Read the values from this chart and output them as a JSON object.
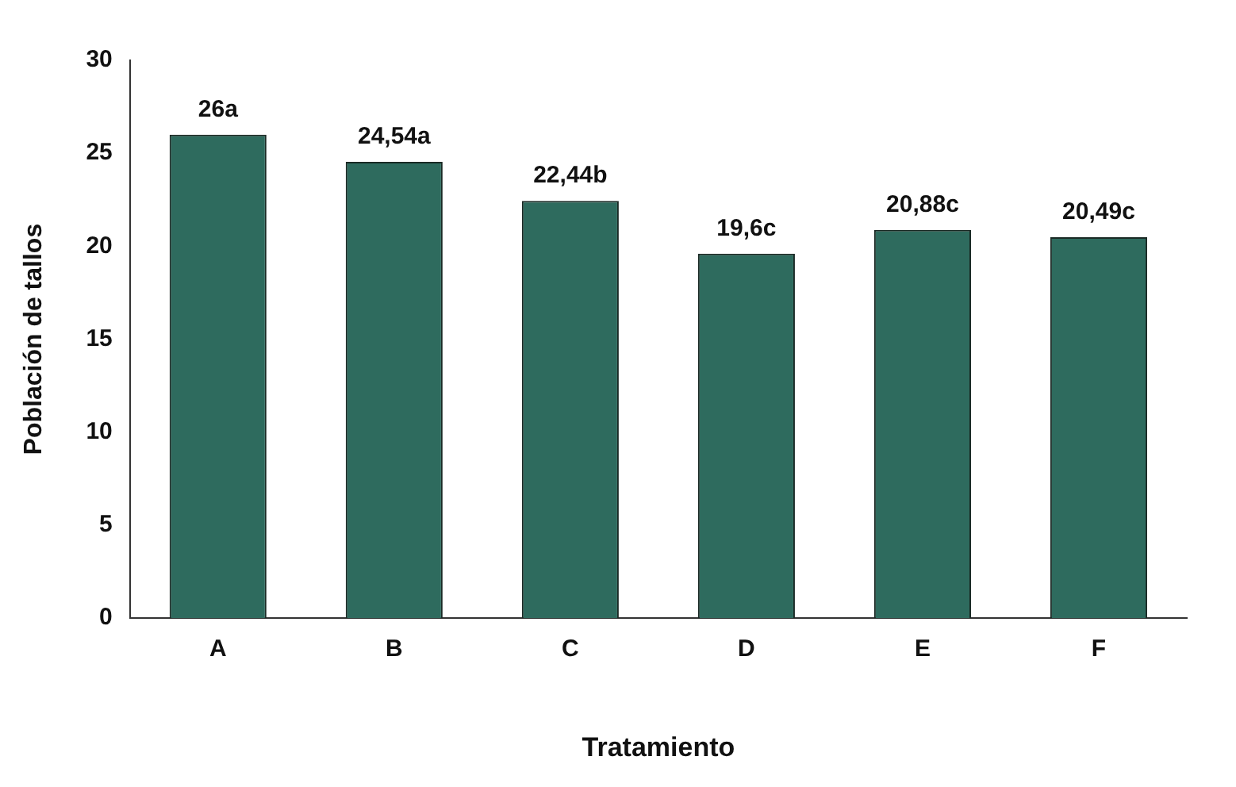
{
  "chart_data": {
    "type": "bar",
    "xlabel": "Tratamiento",
    "ylabel": "Población de tallos",
    "categories": [
      "A",
      "B",
      "C",
      "D",
      "E",
      "F"
    ],
    "values": [
      26,
      24.54,
      22.44,
      19.6,
      20.88,
      20.49
    ],
    "value_labels": [
      "26a",
      "24,54a",
      "22,44b",
      "19,6c",
      "20,88c",
      "20,49c"
    ],
    "color": "#2e6b5e",
    "ylim": [
      0,
      30
    ],
    "yticks": [
      0,
      5,
      10,
      15,
      20,
      25,
      30
    ],
    "grid": false,
    "legend": false
  }
}
